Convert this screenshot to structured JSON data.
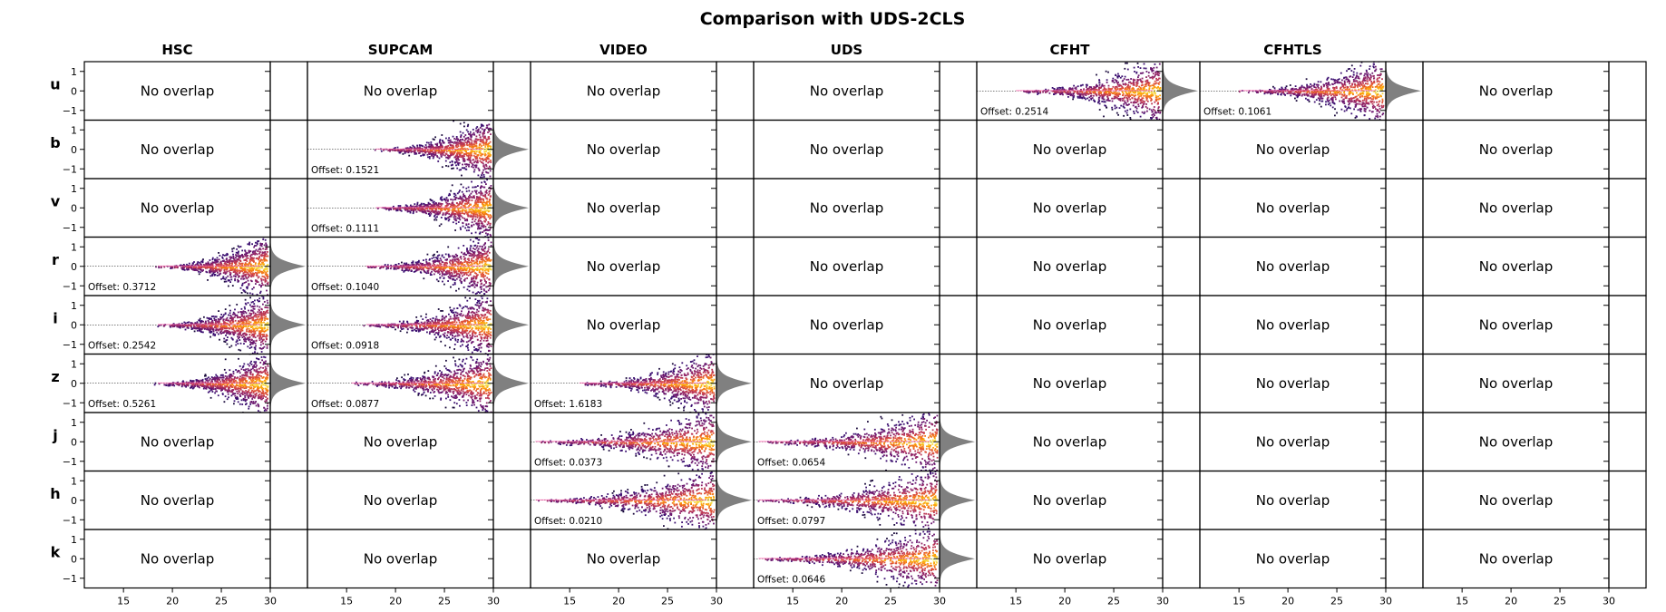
{
  "chart_data": {
    "type": "scatter",
    "title": "Comparison with UDS-2CLS",
    "columns": [
      "HSC",
      "SUPCAM",
      "VIDEO",
      "UDS",
      "CFHT",
      "CFHTLS",
      ""
    ],
    "rows": [
      "u",
      "b",
      "v",
      "r",
      "i",
      "z",
      "j",
      "h",
      "k"
    ],
    "xlim": [
      11,
      30
    ],
    "ylim": [
      -1.5,
      1.5
    ],
    "xticks": [
      15,
      20,
      25,
      30
    ],
    "yticks": [
      1,
      0,
      -1
    ],
    "no_overlap_label": "No overlap",
    "offset_prefix": "Offset: ",
    "colors": {
      "hist": "#808080",
      "frame": "#000000",
      "median": "#ff69b4"
    },
    "panels": [
      {
        "row": "u",
        "col": "CFHT",
        "offset": "0.2514",
        "mag_min": 14.5,
        "scatter_max": 1.5
      },
      {
        "row": "u",
        "col": "CFHTLS",
        "offset": "0.1061",
        "mag_min": 14.5,
        "scatter_max": 1.5
      },
      {
        "row": "b",
        "col": "SUPCAM",
        "offset": "0.1521",
        "mag_min": 17.5,
        "scatter_max": 1.5
      },
      {
        "row": "v",
        "col": "SUPCAM",
        "offset": "0.1111",
        "mag_min": 17.5,
        "scatter_max": 1.5
      },
      {
        "row": "r",
        "col": "HSC",
        "offset": "0.3712",
        "mag_min": 18.0,
        "scatter_max": 1.5
      },
      {
        "row": "r",
        "col": "SUPCAM",
        "offset": "0.1040",
        "mag_min": 16.5,
        "scatter_max": 1.5
      },
      {
        "row": "i",
        "col": "HSC",
        "offset": "0.2542",
        "mag_min": 18.0,
        "scatter_max": 1.5
      },
      {
        "row": "i",
        "col": "SUPCAM",
        "offset": "0.0918",
        "mag_min": 16.5,
        "scatter_max": 1.5
      },
      {
        "row": "z",
        "col": "HSC",
        "offset": "0.5261",
        "mag_min": 18.0,
        "scatter_max": 1.5
      },
      {
        "row": "z",
        "col": "SUPCAM",
        "offset": "0.0877",
        "mag_min": 15.0,
        "scatter_max": 1.5
      },
      {
        "row": "z",
        "col": "VIDEO",
        "offset": "1.6183",
        "mag_min": 15.5,
        "scatter_max": 1.5
      },
      {
        "row": "j",
        "col": "VIDEO",
        "offset": "0.0373",
        "mag_min": 11.0,
        "scatter_max": 1.5
      },
      {
        "row": "j",
        "col": "UDS",
        "offset": "0.0654",
        "mag_min": 11.0,
        "scatter_max": 1.2
      },
      {
        "row": "h",
        "col": "VIDEO",
        "offset": "0.0210",
        "mag_min": 11.0,
        "scatter_max": 1.5
      },
      {
        "row": "h",
        "col": "UDS",
        "offset": "0.0797",
        "mag_min": 11.0,
        "scatter_max": 1.2
      },
      {
        "row": "k",
        "col": "UDS",
        "offset": "0.0646",
        "mag_min": 11.0,
        "scatter_max": 1.2
      }
    ]
  }
}
